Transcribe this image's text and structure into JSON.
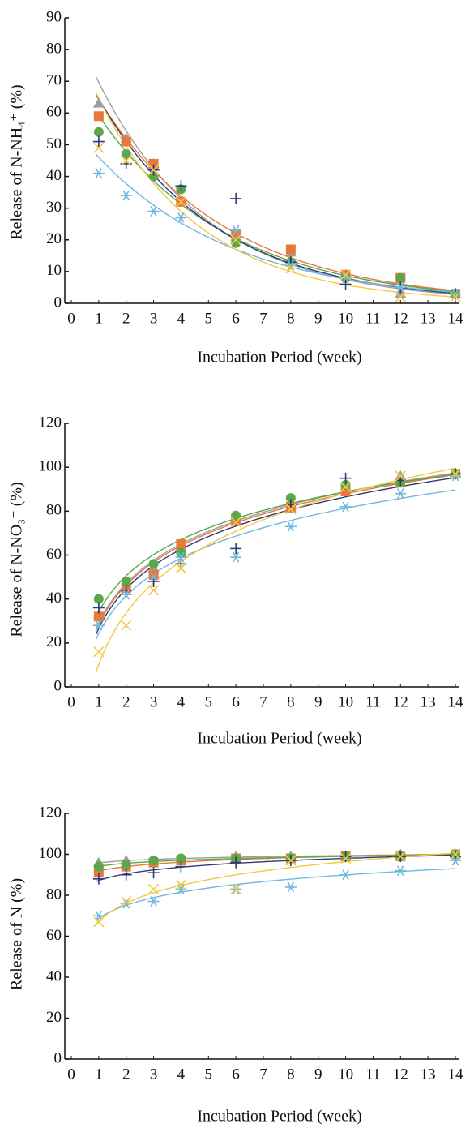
{
  "chart_data": [
    {
      "type": "scatter",
      "y_label": "Release of N-NH₄⁺ (%)",
      "x_label": "Incubation Period (week)",
      "fit": "exponential",
      "x": [
        1,
        2,
        3,
        4,
        6,
        8,
        10,
        12,
        14
      ],
      "xlim": [
        0,
        14
      ],
      "xticks": [
        0,
        1,
        2,
        3,
        4,
        5,
        6,
        7,
        8,
        9,
        10,
        11,
        12,
        13,
        14
      ],
      "ylim": [
        0,
        90
      ],
      "yticks": [
        0,
        10,
        20,
        30,
        40,
        50,
        60,
        70,
        80,
        90
      ],
      "series": [
        {
          "color": "#9e9e9e",
          "marker": "triangle",
          "values": [
            63,
            52,
            44,
            32,
            21,
            16,
            9,
            3,
            3
          ]
        },
        {
          "color": "#e8793a",
          "marker": "square",
          "values": [
            59,
            51,
            44,
            32,
            22,
            17,
            9,
            8,
            3
          ]
        },
        {
          "color": "#5aa84a",
          "marker": "circle",
          "values": [
            54,
            47,
            40,
            36,
            19,
            13,
            8,
            8,
            3
          ]
        },
        {
          "color": "#2b3a7a",
          "marker": "plus",
          "values": [
            51,
            44,
            42,
            37,
            33,
            13,
            6,
            5,
            3
          ]
        },
        {
          "color": "#6fb8e0",
          "marker": "star",
          "values": [
            41,
            34,
            29,
            27,
            23,
            12,
            8,
            5,
            3
          ]
        },
        {
          "color": "#f5c842",
          "marker": "x",
          "values": [
            49,
            45,
            42,
            32,
            20,
            11,
            9,
            2,
            2
          ]
        }
      ]
    },
    {
      "type": "scatter",
      "y_label": "Release of N-NO₃⁻ (%)",
      "x_label": "Incubation Period (week)",
      "fit": "logarithmic",
      "x": [
        1,
        2,
        3,
        4,
        6,
        8,
        10,
        12,
        14
      ],
      "xlim": [
        0,
        14
      ],
      "xticks": [
        0,
        1,
        2,
        3,
        4,
        5,
        6,
        7,
        8,
        9,
        10,
        11,
        12,
        13,
        14
      ],
      "ylim": [
        0,
        120
      ],
      "yticks": [
        0,
        20,
        40,
        60,
        80,
        100,
        120
      ],
      "series": [
        {
          "color": "#9e9e9e",
          "marker": "triangle",
          "values": [
            33,
            45,
            54,
            64,
            77,
            81,
            90,
            96,
            97
          ]
        },
        {
          "color": "#e8793a",
          "marker": "square",
          "values": [
            32,
            45,
            51,
            65,
            76,
            82,
            89,
            93,
            97
          ]
        },
        {
          "color": "#5aa84a",
          "marker": "circle",
          "values": [
            40,
            48,
            56,
            61,
            78,
            86,
            92,
            93,
            97
          ]
        },
        {
          "color": "#2b3a7a",
          "marker": "plus",
          "values": [
            36,
            44,
            48,
            56,
            63,
            83,
            95,
            94,
            97
          ]
        },
        {
          "color": "#6fb8e0",
          "marker": "star",
          "values": [
            28,
            42,
            50,
            59,
            59,
            73,
            82,
            88,
            96
          ]
        },
        {
          "color": "#f5c842",
          "marker": "x",
          "values": [
            16,
            28,
            44,
            54,
            75,
            81,
            91,
            96,
            97
          ]
        }
      ]
    },
    {
      "type": "scatter",
      "y_label": "Release of N (%)",
      "x_label": "Incubation Period (week)",
      "fit": "logarithmic",
      "x": [
        1,
        2,
        3,
        4,
        6,
        8,
        10,
        12,
        14
      ],
      "xlim": [
        0,
        14
      ],
      "xticks": [
        0,
        1,
        2,
        3,
        4,
        5,
        6,
        7,
        8,
        9,
        10,
        11,
        12,
        13,
        14
      ],
      "ylim": [
        0,
        120
      ],
      "yticks": [
        0,
        20,
        40,
        60,
        80,
        100,
        120
      ],
      "series": [
        {
          "color": "#9e9e9e",
          "marker": "triangle",
          "values": [
            96,
            97,
            97,
            98,
            99,
            99,
            99,
            100,
            100
          ]
        },
        {
          "color": "#e8793a",
          "marker": "square",
          "values": [
            91,
            94,
            96,
            97,
            98,
            98,
            99,
            99,
            100
          ]
        },
        {
          "color": "#5aa84a",
          "marker": "circle",
          "values": [
            94,
            95,
            97,
            98,
            98,
            98,
            99,
            99,
            100
          ]
        },
        {
          "color": "#2b3a7a",
          "marker": "plus",
          "values": [
            88,
            90,
            91,
            94,
            96,
            97,
            99,
            99,
            99
          ]
        },
        {
          "color": "#6fb8e0",
          "marker": "star",
          "values": [
            70,
            76,
            77,
            83,
            83,
            84,
            90,
            92,
            97
          ]
        },
        {
          "color": "#f5c842",
          "marker": "x",
          "values": [
            67,
            77,
            83,
            85,
            83,
            97,
            98,
            99,
            100
          ]
        }
      ]
    }
  ]
}
